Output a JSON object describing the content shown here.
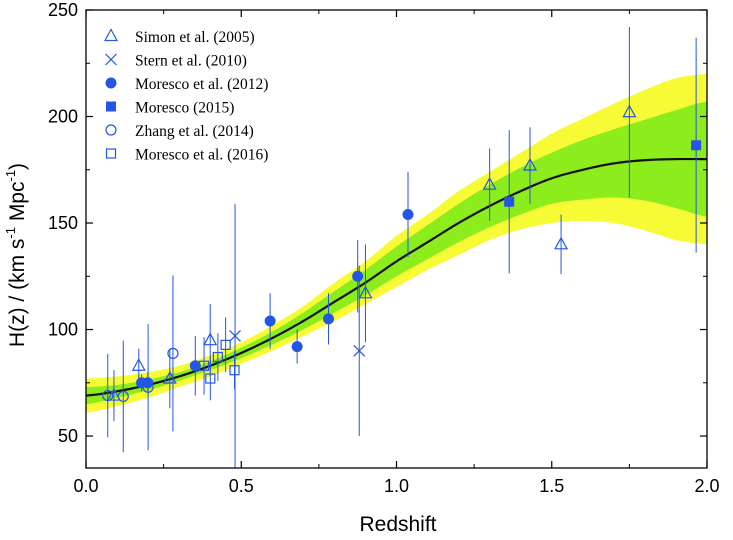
{
  "chart_data": {
    "type": "scatter",
    "title": "",
    "xlabel": "Redshift",
    "ylabel": {
      "prefix": "H(z) / (km s",
      "sup1": "-1",
      "mid": " Mpc",
      "sup2": "-1",
      "suffix": ")"
    },
    "xlim": [
      0.0,
      2.0
    ],
    "ylim": [
      35,
      250
    ],
    "xticks": [
      0.0,
      0.5,
      1.0,
      1.5,
      2.0
    ],
    "xtick_labels": [
      "0.0",
      "0.5",
      "1.0",
      "1.5",
      "2.0"
    ],
    "yticks": [
      50,
      100,
      150,
      200,
      250
    ],
    "ytick_labels": [
      "50",
      "100",
      "150",
      "200",
      "250"
    ],
    "legend_position": "top-left",
    "colors": {
      "points": "#2456e6",
      "curve": "#111111",
      "band_inner": "#8cec1c",
      "band_outer": "#f7fb36"
    },
    "model": {
      "name": "best-fit curve",
      "z": [
        0.0,
        0.1,
        0.2,
        0.3,
        0.4,
        0.5,
        0.6,
        0.7,
        0.8,
        0.9,
        1.0,
        1.1,
        1.2,
        1.3,
        1.4,
        1.5,
        1.6,
        1.7,
        1.8,
        1.9,
        2.0
      ],
      "H": [
        69,
        71,
        74,
        78,
        83,
        89,
        96,
        104,
        113,
        122,
        132,
        141,
        150,
        158,
        165,
        171,
        175,
        178,
        179.5,
        180,
        180
      ],
      "inner": [
        4,
        3,
        2.5,
        2,
        2,
        2.5,
        3,
        4,
        5,
        6,
        7,
        8,
        9,
        10,
        11,
        12,
        14,
        16,
        19,
        23,
        27
      ],
      "outer": [
        8,
        7,
        6,
        5,
        5,
        5,
        6,
        7,
        9,
        10,
        12,
        13,
        15,
        16,
        18,
        21,
        24,
        28,
        33,
        38,
        40
      ]
    },
    "series": [
      {
        "name": "Simon et al. (2005)",
        "marker": "triangle-open",
        "points": [
          {
            "x": 0.09,
            "y": 69,
            "err": 12
          },
          {
            "x": 0.17,
            "y": 83,
            "err": 8
          },
          {
            "x": 0.27,
            "y": 77,
            "err": 14
          },
          {
            "x": 0.4,
            "y": 95,
            "err": 17
          },
          {
            "x": 0.9,
            "y": 117,
            "err": 23
          },
          {
            "x": 1.3,
            "y": 168,
            "err": 17
          },
          {
            "x": 1.43,
            "y": 177,
            "err": 18
          },
          {
            "x": 1.53,
            "y": 140,
            "err": 14
          },
          {
            "x": 1.75,
            "y": 202,
            "err": 40
          }
        ]
      },
      {
        "name": "Stern et al. (2010)",
        "marker": "cross",
        "points": [
          {
            "x": 0.48,
            "y": 97,
            "err": 62
          },
          {
            "x": 0.88,
            "y": 90,
            "err": 40
          }
        ]
      },
      {
        "name": "Moresco et al. (2012)",
        "marker": "circle-filled",
        "points": [
          {
            "x": 0.179,
            "y": 75,
            "err": 4
          },
          {
            "x": 0.199,
            "y": 75,
            "err": 5
          },
          {
            "x": 0.352,
            "y": 83,
            "err": 14
          },
          {
            "x": 0.593,
            "y": 104,
            "err": 13
          },
          {
            "x": 0.68,
            "y": 92,
            "err": 8
          },
          {
            "x": 0.781,
            "y": 105,
            "err": 12
          },
          {
            "x": 0.875,
            "y": 125,
            "err": 17
          },
          {
            "x": 1.037,
            "y": 154,
            "err": 20
          }
        ]
      },
      {
        "name": "Moresco (2015)",
        "marker": "square-filled",
        "points": [
          {
            "x": 1.363,
            "y": 160,
            "err": 33.6
          },
          {
            "x": 1.965,
            "y": 186.5,
            "err": 50.4
          }
        ]
      },
      {
        "name": "Zhang et al. (2014)",
        "marker": "circle-open",
        "points": [
          {
            "x": 0.07,
            "y": 69,
            "err": 19.6
          },
          {
            "x": 0.12,
            "y": 68.6,
            "err": 26.2
          },
          {
            "x": 0.2,
            "y": 72.9,
            "err": 29.6
          },
          {
            "x": 0.28,
            "y": 88.8,
            "err": 36.6
          }
        ]
      },
      {
        "name": "Moresco et al. (2016)",
        "marker": "square-open",
        "points": [
          {
            "x": 0.3802,
            "y": 83,
            "err": 13.5
          },
          {
            "x": 0.4004,
            "y": 77,
            "err": 10.2
          },
          {
            "x": 0.4247,
            "y": 87.1,
            "err": 11.2
          },
          {
            "x": 0.4497,
            "y": 92.8,
            "err": 12.9
          },
          {
            "x": 0.4783,
            "y": 80.9,
            "err": 9
          }
        ]
      }
    ]
  }
}
